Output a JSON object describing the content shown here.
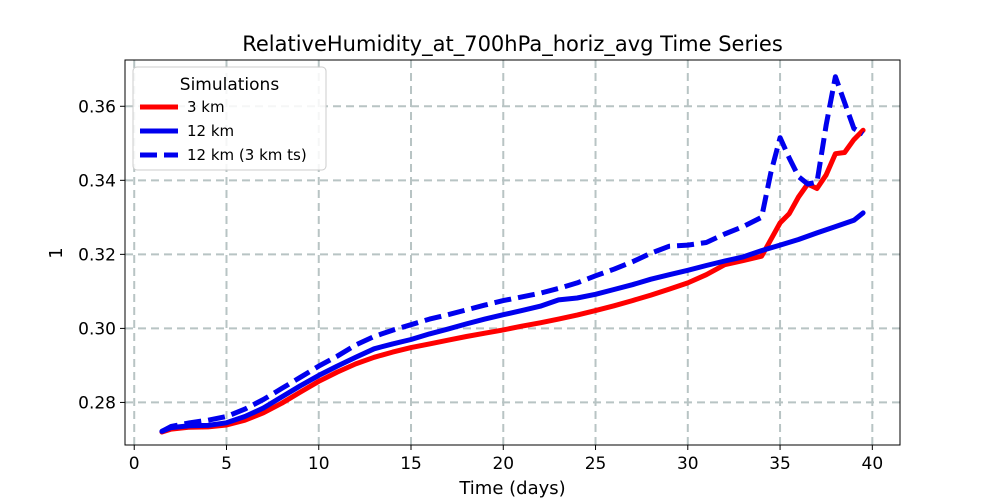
{
  "chart_data": {
    "type": "line",
    "title": "RelativeHumidity_at_700hPa_horiz_avg Time Series",
    "xlabel": "Time (days)",
    "ylabel": "1",
    "xlim": [
      -0.5,
      41.5
    ],
    "ylim": [
      0.2685,
      0.3725
    ],
    "xticks": [
      0,
      5,
      10,
      15,
      20,
      25,
      30,
      35,
      40
    ],
    "yticks": [
      0.28,
      0.3,
      0.32,
      0.34,
      0.36
    ],
    "xtick_labels": [
      "0",
      "5",
      "10",
      "15",
      "20",
      "25",
      "30",
      "35",
      "40"
    ],
    "ytick_labels": [
      "0.28",
      "0.30",
      "0.32",
      "0.34",
      "0.36"
    ],
    "grid": true,
    "legend": {
      "title": "Simulations",
      "position": "upper-left"
    },
    "series": [
      {
        "name": "3 km",
        "color": "#ff0000",
        "style": "solid",
        "x": [
          1.5,
          2,
          3,
          4,
          5,
          6,
          7,
          8,
          9,
          10,
          11,
          12,
          13,
          14,
          15,
          16,
          17,
          18,
          19,
          20,
          21,
          22,
          23,
          24,
          25,
          26,
          27,
          28,
          29,
          30,
          31,
          32,
          33,
          34,
          35,
          35.5,
          36,
          36.5,
          37,
          37.5,
          38,
          38.5,
          39,
          39.5
        ],
        "y": [
          0.272,
          0.2728,
          0.2733,
          0.2734,
          0.2739,
          0.2752,
          0.2772,
          0.2798,
          0.2828,
          0.2857,
          0.2882,
          0.2904,
          0.2922,
          0.2936,
          0.2948,
          0.2958,
          0.2968,
          0.2978,
          0.2987,
          0.2996,
          0.3006,
          0.3015,
          0.3025,
          0.3036,
          0.3048,
          0.3061,
          0.3075,
          0.309,
          0.3106,
          0.3123,
          0.3145,
          0.3172,
          0.3183,
          0.3195,
          0.3285,
          0.331,
          0.3355,
          0.339,
          0.3378,
          0.3415,
          0.3472,
          0.3475,
          0.351,
          0.3535
        ]
      },
      {
        "name": "12 km",
        "color": "#0000ee",
        "style": "solid",
        "x": [
          1.5,
          2,
          3,
          4,
          5,
          6,
          7,
          8,
          9,
          10,
          11,
          12,
          13,
          14,
          15,
          16,
          17,
          18,
          19,
          20,
          21,
          22,
          23,
          24,
          25,
          26,
          27,
          28,
          29,
          30,
          31,
          32,
          33,
          34,
          35,
          36,
          37,
          38,
          39,
          39.5
        ],
        "y": [
          0.2722,
          0.2732,
          0.2737,
          0.2738,
          0.2745,
          0.2762,
          0.2785,
          0.2815,
          0.2845,
          0.2873,
          0.2898,
          0.2922,
          0.2945,
          0.2958,
          0.297,
          0.2985,
          0.2998,
          0.3012,
          0.3025,
          0.3037,
          0.3048,
          0.306,
          0.3077,
          0.3082,
          0.3092,
          0.3105,
          0.3118,
          0.3133,
          0.3145,
          0.3157,
          0.317,
          0.3182,
          0.3193,
          0.321,
          0.3225,
          0.324,
          0.3258,
          0.3275,
          0.3292,
          0.3312
        ]
      },
      {
        "name": "12 km (3 km ts)",
        "color": "#0000ee",
        "style": "dashed",
        "x": [
          1.5,
          2,
          3,
          4,
          5,
          6,
          7,
          8,
          9,
          10,
          11,
          12,
          13,
          14,
          15,
          16,
          17,
          18,
          19,
          20,
          21,
          22,
          23,
          24,
          25,
          26,
          27,
          28,
          29,
          30,
          31,
          32,
          33,
          34,
          34.5,
          35,
          35.5,
          36,
          36.5,
          37,
          37.5,
          38,
          38.5,
          39,
          39.5
        ],
        "y": [
          0.2722,
          0.2735,
          0.2745,
          0.2752,
          0.2762,
          0.2782,
          0.2808,
          0.2838,
          0.2868,
          0.2898,
          0.2925,
          0.2955,
          0.2978,
          0.2995,
          0.301,
          0.3025,
          0.3037,
          0.305,
          0.3063,
          0.3075,
          0.3085,
          0.3095,
          0.3108,
          0.3123,
          0.3142,
          0.316,
          0.318,
          0.3203,
          0.3222,
          0.3225,
          0.3232,
          0.3255,
          0.3275,
          0.33,
          0.342,
          0.3515,
          0.346,
          0.341,
          0.339,
          0.3395,
          0.355,
          0.368,
          0.361,
          0.354,
          0.3525
        ]
      }
    ]
  }
}
